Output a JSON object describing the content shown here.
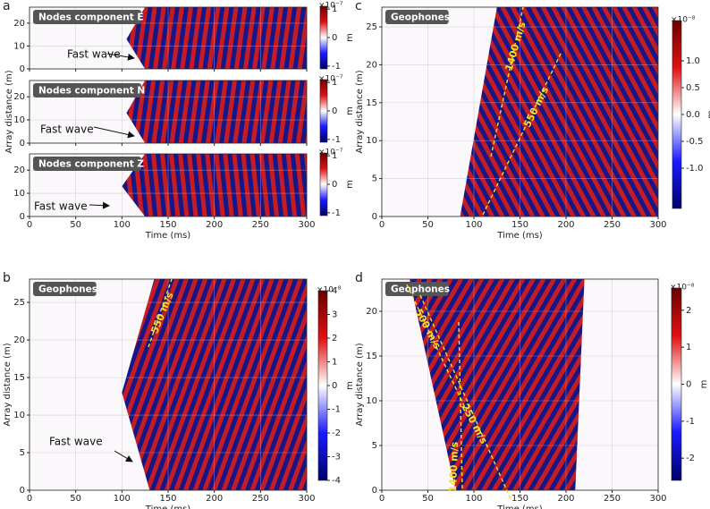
{
  "chart_data": [
    {
      "type": "heatmap",
      "panel": "a",
      "title": "Nodes component E",
      "xlim": [
        0,
        300
      ],
      "xticks": [
        0,
        50,
        100,
        150,
        200,
        250,
        300
      ],
      "ylim": [
        0,
        27
      ],
      "yticks": [
        0,
        10,
        20
      ],
      "clim": [
        -1.1,
        1.1
      ],
      "cticks": [
        1,
        0,
        -1
      ],
      "colorbar_label": "m",
      "colorbar_exponent": "×10⁻⁷",
      "annotations": [
        "Fast wave"
      ],
      "grid": true
    },
    {
      "type": "heatmap",
      "title": "Nodes component N",
      "ylabel": "Array distance (m)",
      "xlim": [
        0,
        300
      ],
      "xticks": [
        0,
        50,
        100,
        150,
        200,
        250,
        300
      ],
      "ylim": [
        0,
        27
      ],
      "yticks": [
        0,
        10,
        20
      ],
      "clim": [
        -1.1,
        1.1
      ],
      "cticks": [
        1,
        0,
        -1
      ],
      "colorbar_label": "m",
      "colorbar_exponent": "×10⁻⁷",
      "annotations": [
        "Fast wave"
      ],
      "grid": true
    },
    {
      "type": "heatmap",
      "title": "Nodes component Z",
      "xlabel": "Time (ms)",
      "xlim": [
        0,
        300
      ],
      "xticks": [
        0,
        50,
        100,
        150,
        200,
        250,
        300
      ],
      "ylim": [
        0,
        27
      ],
      "yticks": [
        0,
        10,
        20
      ],
      "clim": [
        -1.1,
        1.1
      ],
      "cticks": [
        1,
        0,
        -1
      ],
      "colorbar_label": "m",
      "colorbar_exponent": "×10⁻⁷",
      "annotations": [
        "Fast wave"
      ],
      "grid": true
    },
    {
      "type": "heatmap",
      "panel": "b",
      "title": "Geophones",
      "xlabel": "Time (ms)",
      "ylabel": "Array distance (m)",
      "xlim": [
        0,
        300
      ],
      "xticks": [
        0,
        50,
        100,
        150,
        200,
        250,
        300
      ],
      "ylim": [
        0,
        28.1
      ],
      "yticks": [
        0,
        5,
        10,
        15,
        20,
        25
      ],
      "clim": [
        -4,
        4
      ],
      "cticks": [
        4,
        3,
        2,
        1,
        0,
        -1,
        -2,
        -3,
        -4
      ],
      "colorbar_label": "m",
      "colorbar_exponent": "×10⁻⁸",
      "annotations": [
        "Fast wave",
        "550 m/s"
      ],
      "grid": true
    },
    {
      "type": "heatmap",
      "panel": "c",
      "title": "Geophones",
      "xlabel": "Time (ms)",
      "ylabel": "Array distance (m)",
      "xlim": [
        0,
        300
      ],
      "xticks": [
        0,
        50,
        100,
        150,
        200,
        250,
        300
      ],
      "ylim": [
        0,
        27.6
      ],
      "yticks": [
        0,
        5,
        10,
        15,
        20,
        25
      ],
      "clim": [
        -1.75,
        1.75
      ],
      "cticks": [
        {
          "value": 1,
          "label": "1.0"
        },
        {
          "value": 0.5,
          "label": "0.5"
        },
        {
          "value": 0,
          "label": "0.0"
        },
        {
          "value": -0.5,
          "label": "-0.5"
        },
        {
          "value": -1,
          "label": "-1.0"
        }
      ],
      "colorbar_label": "m",
      "colorbar_exponent": "×10⁻⁸",
      "annotations": [
        "1400 m/s",
        "550 m/s"
      ],
      "grid": true
    },
    {
      "type": "heatmap",
      "panel": "d",
      "title": "Geophones",
      "xlabel": "Time (ms)",
      "ylabel": "Array distance (m)",
      "xlim": [
        0,
        300
      ],
      "xticks": [
        0,
        50,
        100,
        150,
        200,
        250,
        300
      ],
      "ylim": [
        0,
        23.6
      ],
      "yticks": [
        0,
        5,
        10,
        15,
        20
      ],
      "clim": [
        -2.6,
        2.6
      ],
      "cticks": [
        2,
        1,
        0,
        -1,
        -2
      ],
      "colorbar_label": "m",
      "colorbar_exponent": "×10⁻⁸",
      "annotations": [
        "500 m/s",
        "250 m/s",
        "1400 m/s"
      ],
      "grid": true
    }
  ]
}
